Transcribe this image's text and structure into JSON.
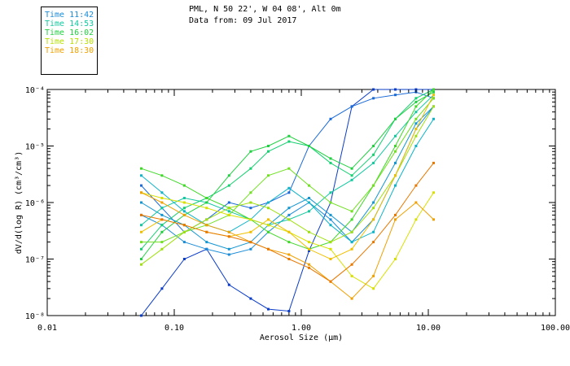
{
  "header": {
    "location": "PML, N 50 22', W 04 08', Alt 0m",
    "date_line": "Data from: 09 Jul 2017"
  },
  "legend": [
    {
      "label": "Time 11:42",
      "color": "#1a8cd8"
    },
    {
      "label": "Time 14:53",
      "color": "#14c8a0"
    },
    {
      "label": "Time 16:02",
      "color": "#20d040"
    },
    {
      "label": "Time 17:30",
      "color": "#b4e000"
    },
    {
      "label": "Time 18:30",
      "color": "#f0a000"
    }
  ],
  "chart_data": {
    "type": "line",
    "xlabel": "Aerosol Size (μm)",
    "ylabel": "dV/d(log R) (cm³/cm³)",
    "xscale": "log",
    "yscale": "log",
    "xlim": [
      0.01,
      100
    ],
    "ylim": [
      1e-08,
      0.0001
    ],
    "x_tick_labels": [
      "0.01",
      "0.10",
      "1.00",
      "10.00",
      "100.00"
    ],
    "y_tick_labels": [
      "10⁻⁸",
      "10⁻⁷",
      "10⁻⁶",
      "10⁻⁵",
      "10⁻⁴"
    ],
    "x_ticks": [
      0.01,
      0.1,
      1,
      10,
      100
    ],
    "y_ticks": [
      1e-08,
      1e-07,
      1e-06,
      1e-05,
      0.0001
    ],
    "grid": false,
    "legend_position": "top-left, outside plot",
    "x": [
      0.055,
      0.08,
      0.12,
      0.18,
      0.27,
      0.4,
      0.55,
      0.8,
      1.15,
      1.7,
      2.5,
      3.7,
      5.5,
      8,
      11
    ],
    "series": [
      {
        "color": "#0a3cc8",
        "values": [
          1e-08,
          3e-08,
          1e-07,
          1.5e-07,
          3.5e-08,
          2e-08,
          1.3e-08,
          1.2e-08,
          1.4e-07,
          1e-06,
          5e-05,
          0.0001,
          0.0001,
          0.0001,
          0.0001
        ]
      },
      {
        "color": "#1a6ad8",
        "values": [
          2e-06,
          8e-07,
          3e-07,
          5e-07,
          1e-06,
          8e-07,
          1e-06,
          1.5e-06,
          1e-05,
          3e-05,
          5e-05,
          7e-05,
          8e-05,
          9e-05,
          7e-05
        ]
      },
      {
        "color": "#1a8cd8",
        "values": [
          6e-07,
          4e-07,
          2e-07,
          1.5e-07,
          1.2e-07,
          1.5e-07,
          3e-07,
          6e-07,
          1e-06,
          5e-07,
          2e-07,
          5e-07,
          3e-06,
          2e-05,
          5e-05
        ]
      },
      {
        "color": "#1496d0",
        "values": [
          1e-06,
          6e-07,
          4e-07,
          2e-07,
          1.5e-07,
          2e-07,
          4e-07,
          8e-07,
          1.2e-06,
          6e-07,
          3e-07,
          1e-06,
          5e-06,
          2.5e-05,
          5e-05
        ]
      },
      {
        "color": "#10b4c8",
        "values": [
          3e-06,
          1.5e-06,
          7e-07,
          4e-07,
          3e-07,
          5e-07,
          1e-06,
          1.8e-06,
          1e-06,
          4e-07,
          2e-07,
          3e-07,
          2e-06,
          1e-05,
          3e-05
        ]
      },
      {
        "color": "#14c8a0",
        "values": [
          4e-07,
          8e-07,
          1.2e-06,
          1e-06,
          7e-07,
          5e-07,
          4e-07,
          5e-07,
          7e-07,
          1.5e-06,
          2.5e-06,
          5e-06,
          1.5e-05,
          4e-05,
          8e-05
        ]
      },
      {
        "color": "#14d070",
        "values": [
          1.5e-07,
          4e-07,
          8e-07,
          1.2e-06,
          2e-06,
          4e-06,
          8e-06,
          1.2e-05,
          1e-05,
          5e-06,
          3e-06,
          7e-06,
          3e-05,
          7e-05,
          0.0001
        ]
      },
      {
        "color": "#20d040",
        "values": [
          1e-07,
          3e-07,
          6e-07,
          1e-06,
          3e-06,
          8e-06,
          1e-05,
          1.5e-05,
          1e-05,
          6e-06,
          4e-06,
          1e-05,
          3e-05,
          6e-05,
          9e-05
        ]
      },
      {
        "color": "#40d828",
        "values": [
          4e-06,
          3e-06,
          2e-06,
          1.2e-06,
          8e-07,
          5e-07,
          3e-07,
          2e-07,
          1.5e-07,
          2e-07,
          5e-07,
          2e-06,
          1e-05,
          5e-05,
          0.0001
        ]
      },
      {
        "color": "#70e020",
        "values": [
          2e-07,
          2e-07,
          3e-07,
          4e-07,
          6e-07,
          1.5e-06,
          3e-06,
          4e-06,
          2e-06,
          1e-06,
          7e-07,
          2e-06,
          8e-06,
          3e-05,
          7e-05
        ]
      },
      {
        "color": "#a0e010",
        "values": [
          8e-08,
          1.5e-07,
          3e-07,
          5e-07,
          8e-07,
          1e-06,
          8e-07,
          5e-07,
          3e-07,
          2e-07,
          3e-07,
          8e-07,
          3e-06,
          1.5e-05,
          5e-05
        ]
      },
      {
        "color": "#d8e000",
        "values": [
          1.5e-06,
          1.2e-06,
          1e-06,
          8e-07,
          6e-07,
          5e-07,
          4e-07,
          3e-07,
          2e-07,
          1.5e-07,
          5e-08,
          3e-08,
          1e-07,
          5e-07,
          1.5e-06
        ]
      },
      {
        "color": "#f0c000",
        "values": [
          3e-07,
          5e-07,
          4e-07,
          3e-07,
          2.5e-07,
          3e-07,
          5e-07,
          3e-07,
          1.5e-07,
          1e-07,
          1.5e-07,
          5e-07,
          3e-06,
          2e-05,
          8e-05
        ]
      },
      {
        "color": "#f0a000",
        "values": [
          1.5e-06,
          1e-06,
          6e-07,
          4e-07,
          3e-07,
          2e-07,
          1.5e-07,
          1.2e-07,
          8e-08,
          4e-08,
          2e-08,
          5e-08,
          5e-07,
          1e-06,
          5e-07
        ]
      },
      {
        "color": "#e87800",
        "values": [
          6e-07,
          5e-07,
          4e-07,
          3e-07,
          2.5e-07,
          2e-07,
          1.5e-07,
          1e-07,
          7e-08,
          4e-08,
          8e-08,
          2e-07,
          6e-07,
          2e-06,
          5e-06
        ]
      }
    ]
  }
}
